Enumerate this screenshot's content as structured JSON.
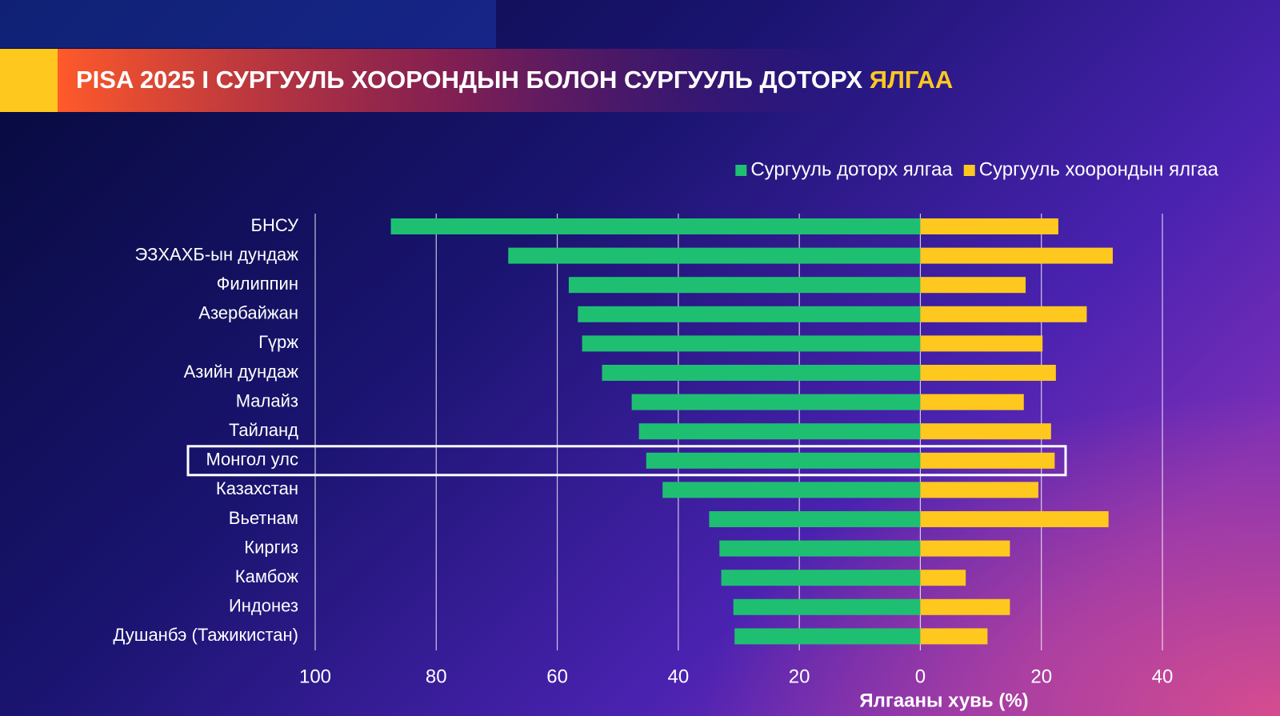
{
  "header": {
    "title": "PISA 2025 I СУРГУУЛЬ ХООРОНДЫН БОЛОН СУРГУУЛЬ ДОТОРХ",
    "title_highlight": "ЯЛГАА"
  },
  "chart_data": {
    "type": "diverging-bar",
    "orientation": "horizontal",
    "categories": [
      "БНСУ",
      "ЭЗХАХБ-ын дундаж",
      "Филиппин",
      "Азербайжан",
      "Гүрж",
      "Азийн дундаж",
      "Малайз",
      "Тайланд",
      "Монгол улс",
      "Казахстан",
      "Вьетнам",
      "Киргиз",
      "Камбож",
      "Индонез",
      "Душанбэ (Тажикистан)"
    ],
    "series": [
      {
        "name": "Сургууль доторх ялгаа",
        "color": "#1fbf72",
        "values": [
          -87.5,
          -68.1,
          -58.1,
          -56.6,
          -55.9,
          -52.6,
          -47.7,
          -46.5,
          -45.3,
          -42.6,
          -34.9,
          -33.2,
          -32.9,
          -30.9,
          -30.7
        ]
      },
      {
        "name": "Сургууль хоорондын ялгаа",
        "color": "#ffc81e",
        "values": [
          22.8,
          31.8,
          17.4,
          27.5,
          20.2,
          22.4,
          17.1,
          21.6,
          22.2,
          19.5,
          31.1,
          14.8,
          7.5,
          14.8,
          11.1
        ]
      }
    ],
    "highlight": "Монгол улс",
    "xlabel": "Ялгааны хувь (%)",
    "xlim": [
      -100,
      40
    ],
    "xticks": [
      {
        "value": -100,
        "label": "100"
      },
      {
        "value": -80,
        "label": "80"
      },
      {
        "value": -60,
        "label": "60"
      },
      {
        "value": -40,
        "label": "40"
      },
      {
        "value": -20,
        "label": "20"
      },
      0,
      20,
      40
    ],
    "grid": true,
    "legend": "top-right"
  }
}
